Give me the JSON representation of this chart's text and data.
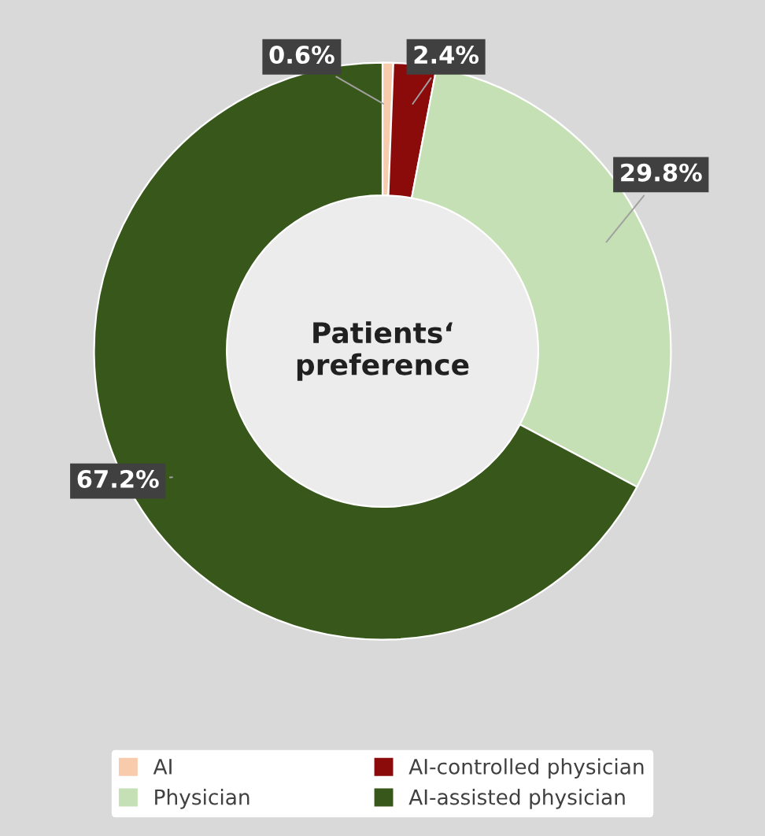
{
  "chart_data": {
    "type": "donut",
    "categories": [
      "AI",
      "AI-controlled physician",
      "Physician",
      "AI-assisted physician"
    ],
    "values": [
      0.6,
      2.4,
      29.8,
      67.2
    ],
    "colors": [
      "#f8cbad",
      "#8b0a0a",
      "#c5e0b4",
      "#38571a"
    ],
    "value_labels": [
      "0.6%",
      "2.4%",
      "29.8%",
      "67.2%"
    ],
    "annotations": [
      "Patients‘\npreference"
    ],
    "legend": "bottom"
  }
}
